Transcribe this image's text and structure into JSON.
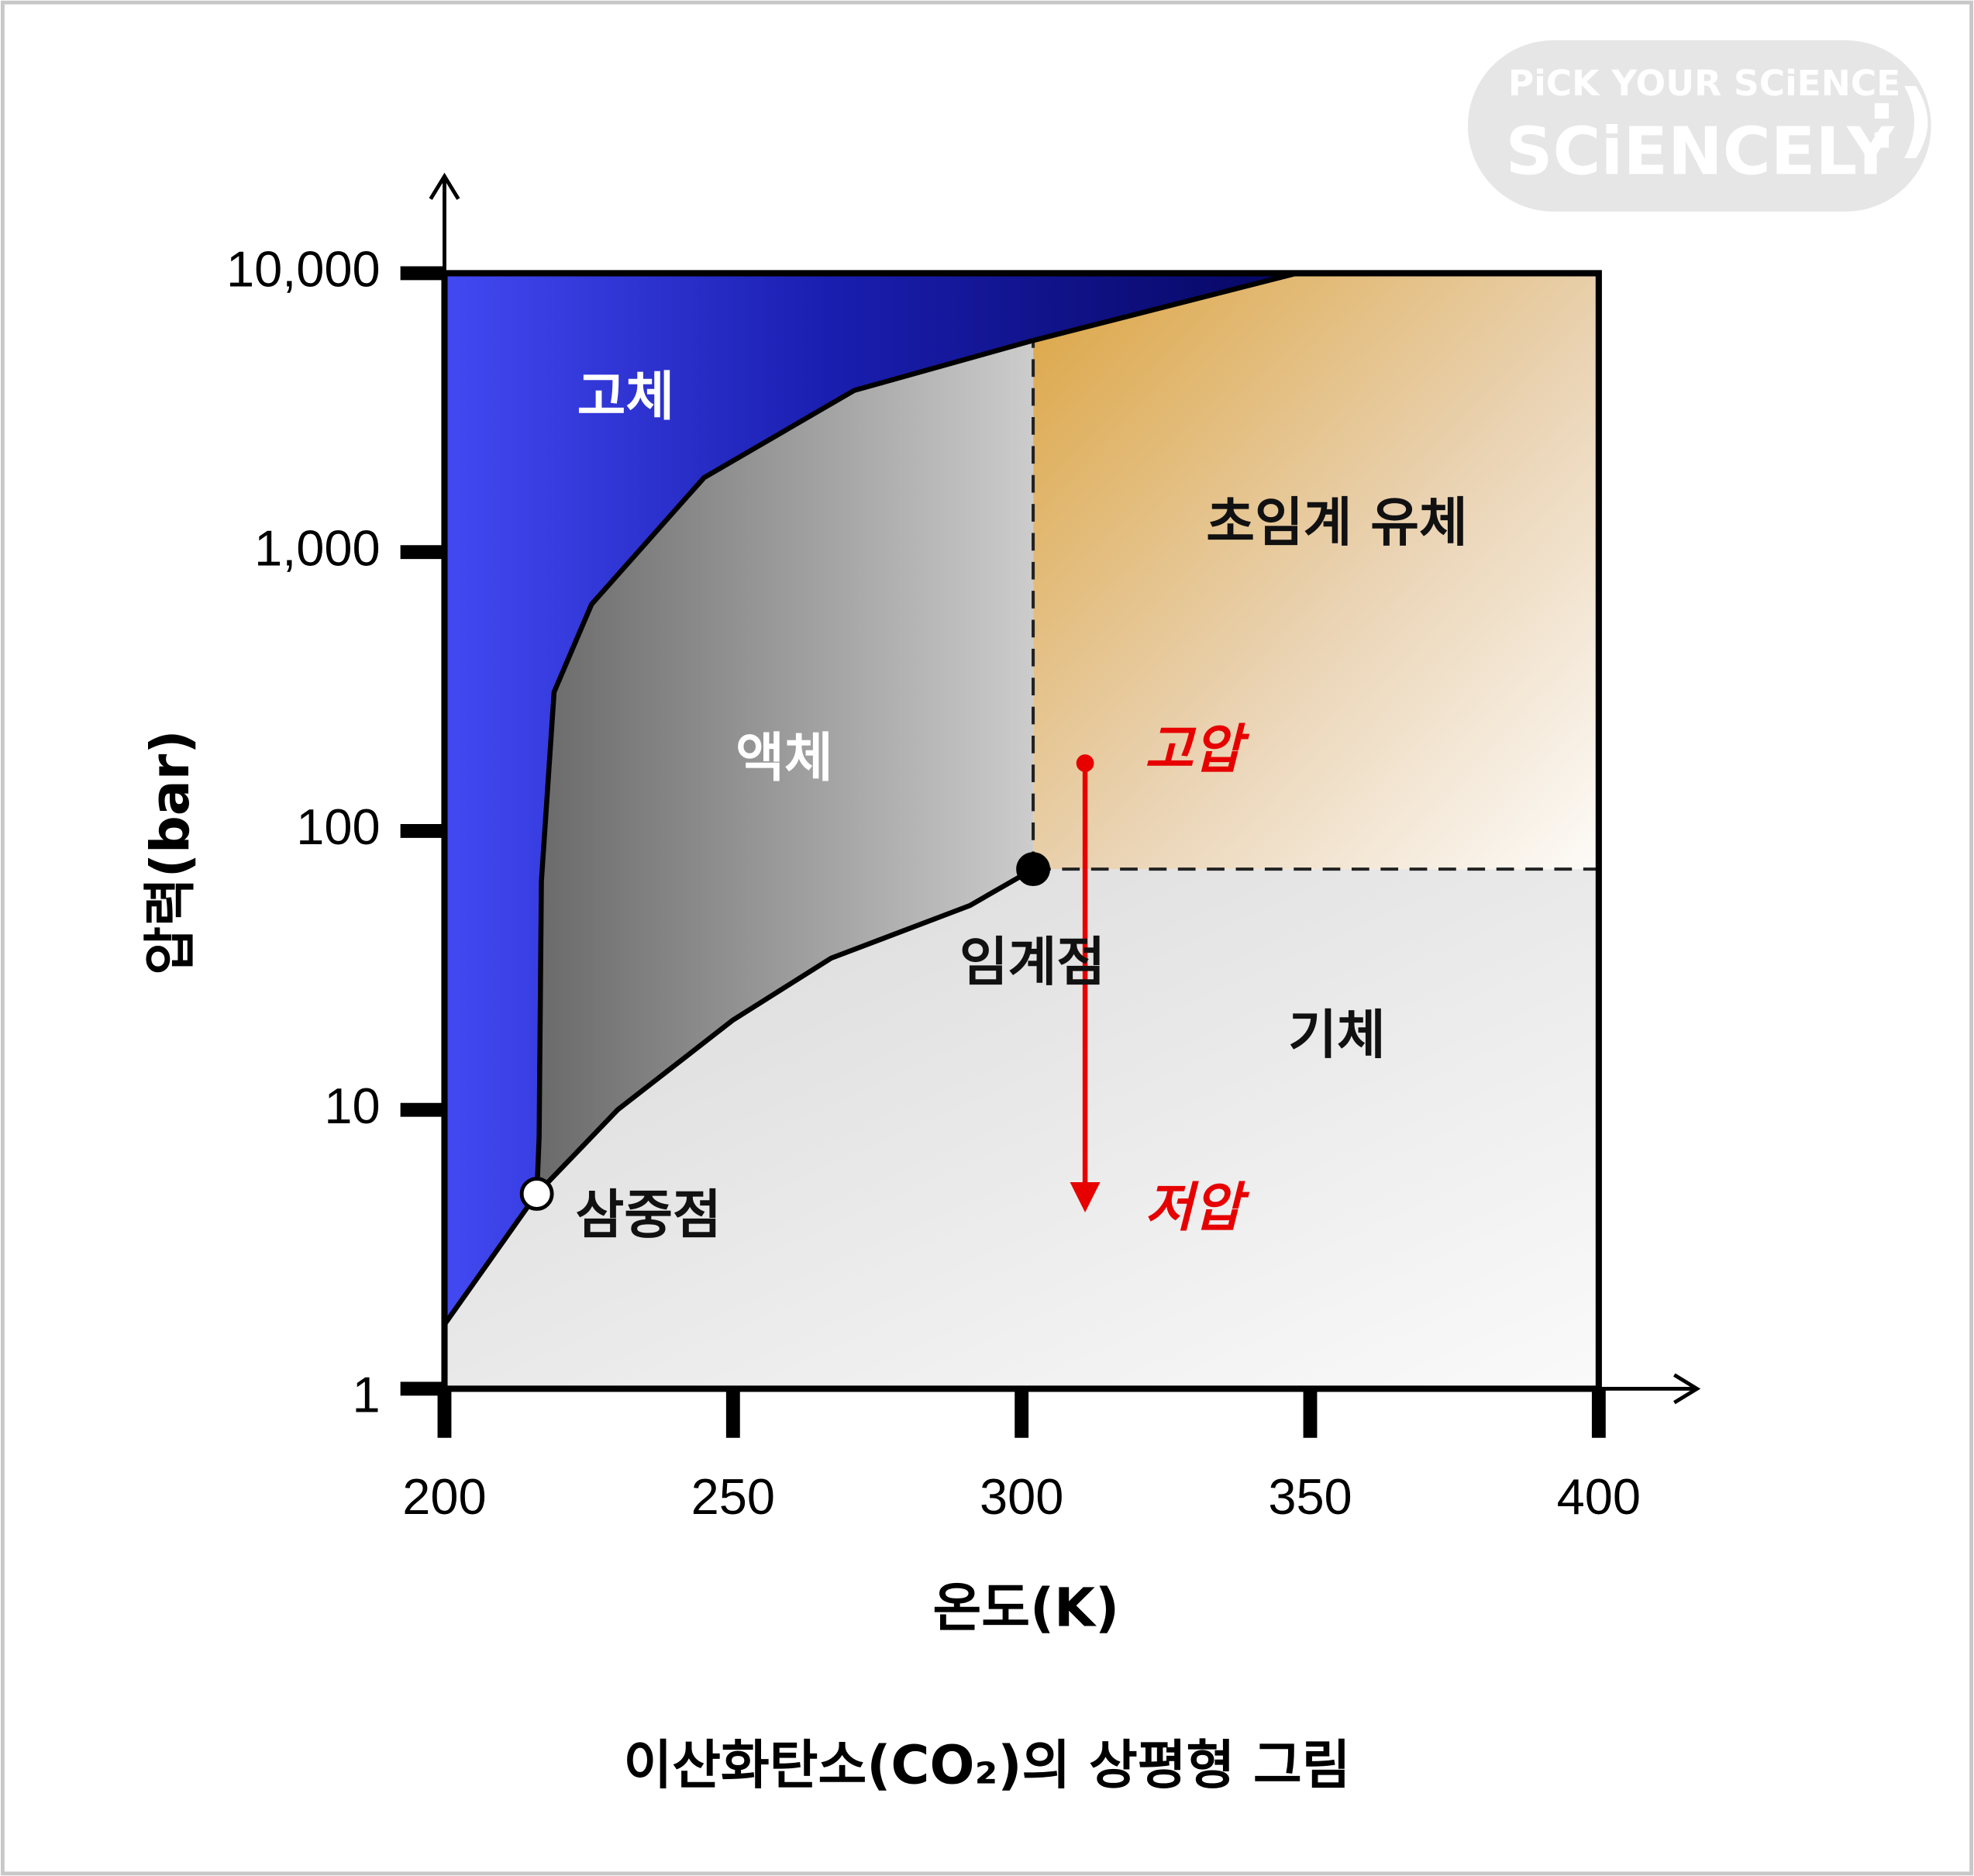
{
  "chart_data": {
    "type": "phase",
    "title": "이산화탄소(CO₂)의 상평형 그림",
    "x_label": "온도(K)",
    "y_label": "압력(bar)",
    "xlim": [
      200,
      400
    ],
    "xticks": [
      200,
      250,
      300,
      350,
      400
    ],
    "ylim": [
      1,
      10000
    ],
    "y_scale": "log",
    "yticks": [
      1,
      10,
      100,
      {
        "value": 1000,
        "label": "1,000"
      },
      {
        "value": 10000,
        "label": "10,000"
      }
    ],
    "regions": [
      "고체",
      "액체",
      "초임계 유체",
      "기체"
    ],
    "boundaries": [
      {
        "x": [
          200,
          216
        ],
        "values": [
          1.7,
          5
        ]
      },
      {
        "x": [
          216,
          216.4,
          216.8,
          219,
          225.5,
          245,
          271,
          302,
          347.7
        ],
        "values": [
          5,
          8,
          66,
          315,
          650,
          1850,
          3800,
          5740,
          10000
        ]
      },
      {
        "x": [
          216,
          230,
          250,
          267,
          291,
          302
        ],
        "values": [
          5,
          10,
          21,
          35,
          54,
          73
        ]
      }
    ],
    "points": [
      {
        "label": "삼중점",
        "x": 216,
        "y": 5,
        "color": "#ffffff"
      },
      {
        "label": "임계점",
        "x": 302,
        "y": 73,
        "color": "#000000"
      }
    ],
    "arrow": {
      "x": 311,
      "from": 175,
      "to": 4.2,
      "color": "#e60000",
      "labels": [
        "고압",
        "저압"
      ]
    },
    "watermark": [
      "PiCK YOUR SCiENCE",
      "SCiENCELY"
    ]
  }
}
